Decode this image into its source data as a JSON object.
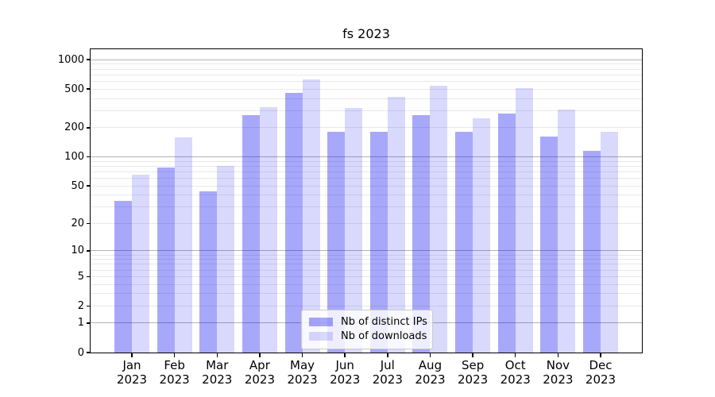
{
  "chart_data": {
    "type": "bar",
    "title": "fs 2023",
    "categories": [
      "Jan",
      "Feb",
      "Mar",
      "Apr",
      "May",
      "Jun",
      "Jul",
      "Aug",
      "Sep",
      "Oct",
      "Nov",
      "Dec"
    ],
    "year_label": "2023",
    "series": [
      {
        "name": "Nb of distinct IPs",
        "color": "rgba(0,0,240,0.34)",
        "values": [
          35,
          78,
          44,
          272,
          458,
          180,
          183,
          272,
          183,
          279,
          163,
          116
        ]
      },
      {
        "name": "Nb of downloads",
        "color": "rgba(0,0,240,0.15)",
        "values": [
          65,
          158,
          80,
          325,
          630,
          320,
          412,
          540,
          250,
          513,
          305,
          180
        ]
      }
    ],
    "xlabel": "",
    "ylabel": "",
    "yscale": "log1p",
    "ylim": [
      0,
      1280
    ],
    "yticks": [
      0,
      1,
      2,
      5,
      10,
      20,
      50,
      100,
      200,
      500,
      1000
    ],
    "major_gridlines": [
      1,
      10,
      100,
      1000
    ],
    "minor_gridlines": [
      2,
      3,
      4,
      5,
      6,
      7,
      8,
      9,
      20,
      30,
      40,
      50,
      60,
      70,
      80,
      90,
      200,
      300,
      400,
      500,
      600,
      700,
      800,
      900
    ],
    "grid": true,
    "legend_position": "lower center",
    "colors": {
      "major_grid": "#b3b3b3",
      "minor_grid": "#e9e9e9",
      "spine": "#000000",
      "text": "#000000",
      "background": "#ffffff"
    }
  }
}
